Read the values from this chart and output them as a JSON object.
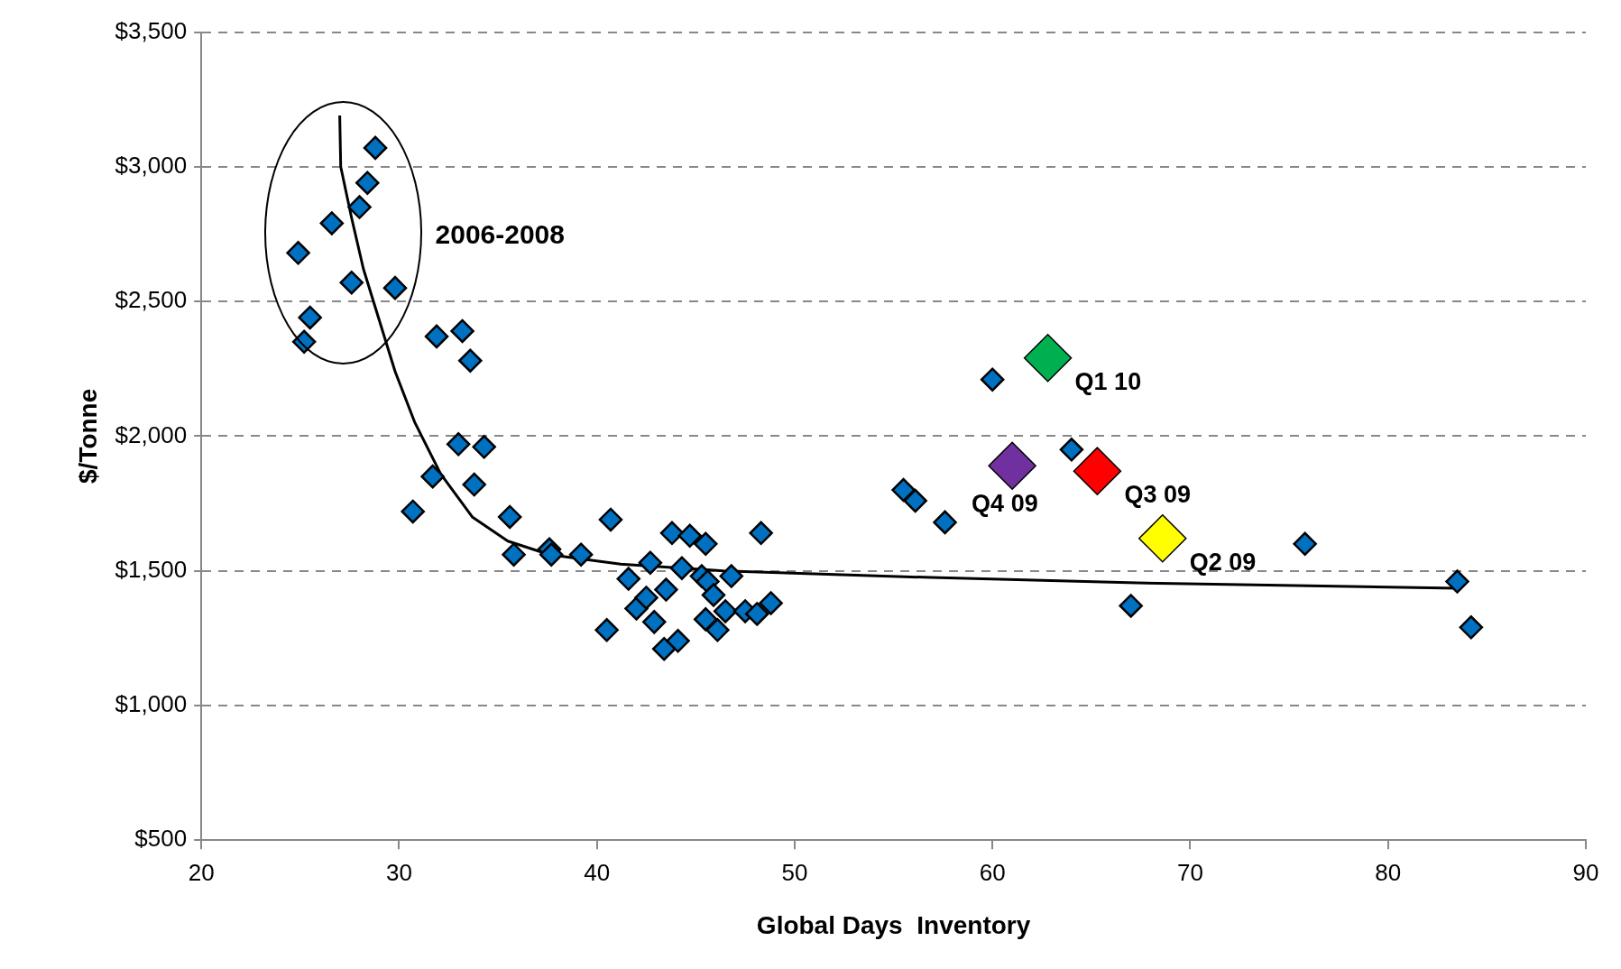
{
  "chart_data": {
    "type": "scatter",
    "xlabel": "Global Days  Inventory",
    "ylabel": "$/Tonne",
    "xlim": [
      20,
      90
    ],
    "xticks": [
      20,
      30,
      40,
      50,
      60,
      70,
      80,
      90
    ],
    "ylim": [
      500,
      3500
    ],
    "yticks": [
      {
        "value": 500,
        "label": "$500"
      },
      {
        "value": 1000,
        "label": "$1,000"
      },
      {
        "value": 1500,
        "label": "$1,500"
      },
      {
        "value": 2000,
        "label": "$2,000"
      },
      {
        "value": 2500,
        "label": "$2,500"
      },
      {
        "value": 3000,
        "label": "$3,000"
      },
      {
        "value": 3500,
        "label": "$3,500"
      }
    ],
    "grid": "y",
    "legend": false,
    "marker": "diamond",
    "annotations": [
      "2006-2008"
    ],
    "series": [
      {
        "color": "#0070c0",
        "x": [
          28.8,
          28.4,
          28.0,
          26.6,
          24.9,
          27.6,
          29.8,
          25.5,
          25.2,
          31.9,
          33.2,
          33.6,
          33.0,
          34.3,
          31.7,
          33.8,
          30.7,
          35.6,
          35.8,
          37.6,
          37.7,
          39.2,
          40.7,
          40.5,
          41.6,
          42.0,
          42.5,
          42.7,
          42.9,
          43.5,
          43.4,
          44.1,
          43.8,
          44.3,
          44.7,
          45.5,
          45.3,
          45.6,
          45.5,
          45.9,
          46.1,
          46.5,
          46.8,
          47.5,
          48.1,
          48.3,
          48.8,
          55.5,
          56.1,
          57.6,
          60.0,
          64.0,
          67.0,
          75.8,
          83.5,
          84.2
        ],
        "values": [
          3070,
          2940,
          2850,
          2790,
          2680,
          2570,
          2550,
          2440,
          2350,
          2370,
          2390,
          2280,
          1970,
          1960,
          1850,
          1820,
          1720,
          1700,
          1560,
          1580,
          1560,
          1560,
          1690,
          1280,
          1470,
          1360,
          1400,
          1530,
          1310,
          1430,
          1210,
          1240,
          1640,
          1510,
          1630,
          1600,
          1480,
          1460,
          1320,
          1410,
          1280,
          1350,
          1480,
          1350,
          1340,
          1640,
          1380,
          1800,
          1760,
          1680,
          2210,
          1950,
          1370,
          1600,
          1460,
          1290
        ]
      },
      {
        "name": "Q1 10",
        "color": "#00b050",
        "x": [
          62.8
        ],
        "values": [
          2290
        ]
      },
      {
        "name": "Q4 09",
        "color": "#7030a0",
        "x": [
          61.0
        ],
        "values": [
          1890
        ]
      },
      {
        "name": "Q3 09",
        "color": "#ff0000",
        "x": [
          65.3
        ],
        "values": [
          1870
        ]
      },
      {
        "name": "Q2 09",
        "color": "#ffff00",
        "x": [
          68.6
        ],
        "values": [
          1620
        ]
      },
      {
        "type": "line",
        "marker": "none",
        "color": "#000000",
        "x": [
          27.0,
          27.05,
          27.6,
          28.2,
          29.0,
          29.8,
          30.8,
          32.1,
          33.7,
          35.5,
          37.6,
          41.2,
          46.4,
          56.9,
          67.3,
          83.5
        ],
        "values": [
          3190,
          3000,
          2810,
          2620,
          2430,
          2240,
          2050,
          1860,
          1700,
          1610,
          1560,
          1525,
          1500,
          1475,
          1455,
          1435
        ]
      }
    ]
  }
}
